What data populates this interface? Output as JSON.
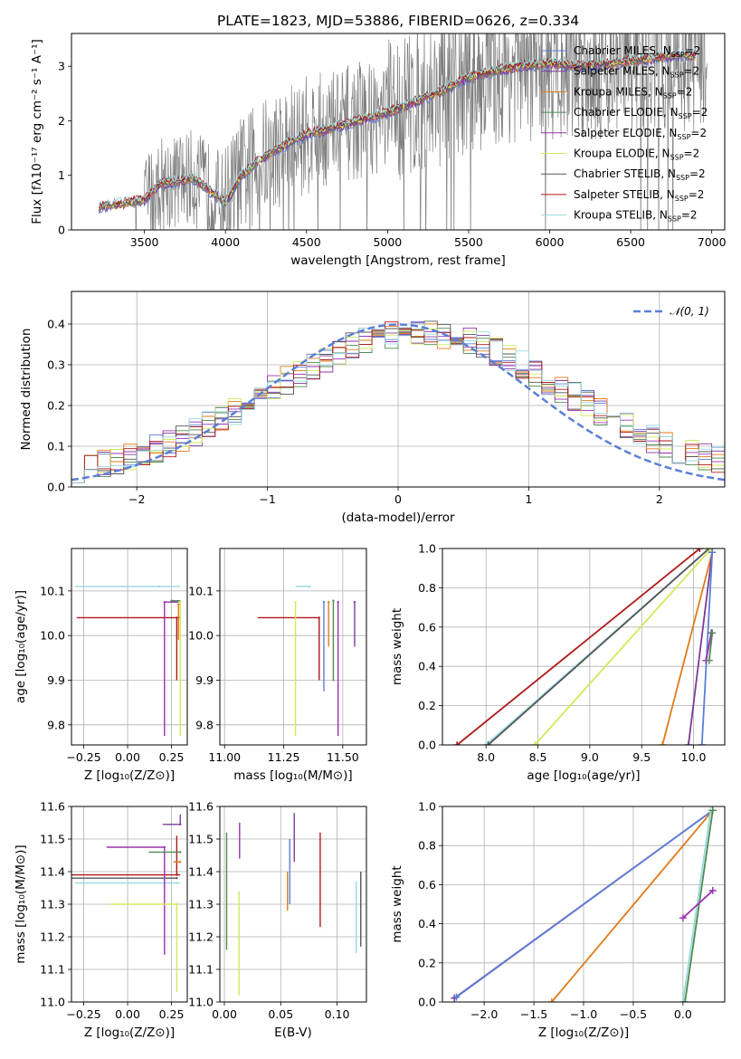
{
  "figure": {
    "title": "PLATE=1823, MJD=53886, FIBERID=0626, z=0.334"
  },
  "models": [
    {
      "label": "Chabrier MILES, N",
      "color": "#5b7fd6"
    },
    {
      "label": "Salpeter MILES, N",
      "color": "#7b3b9a"
    },
    {
      "label": "Kroupa MILES, N",
      "color": "#e07b1a"
    },
    {
      "label": "Chabrier ELODIE, N",
      "color": "#4f8a4f"
    },
    {
      "label": "Salpeter ELODIE, N",
      "color": "#9b30b0"
    },
    {
      "label": "Kroupa ELODIE, N",
      "color": "#d4e85a"
    },
    {
      "label": "Chabrier STELIB, N",
      "color": "#555555"
    },
    {
      "label": "Salpeter STELIB, N",
      "color": "#b01818"
    },
    {
      "label": "Kroupa STELIB, N",
      "color": "#98d8e0"
    }
  ],
  "legend_suffix": {
    "sub": "SSP",
    "tail": "=2"
  },
  "chart_data": [
    {
      "id": "spectrum",
      "type": "line",
      "xlabel": "wavelength [Angstrom, rest frame]",
      "ylabel": "Flux [fλ10⁻¹⁷ erg cm⁻² s⁻¹ A⁻¹]",
      "xlim": [
        3050,
        7080
      ],
      "ylim": [
        0,
        3.6
      ],
      "xticks": [
        3500,
        4000,
        4500,
        5000,
        5500,
        6000,
        6500,
        7000
      ],
      "yticks": [
        0,
        1,
        2,
        3
      ],
      "data_x_range": [
        3220,
        6970
      ],
      "model_continuum": {
        "x": [
          3220,
          3500,
          3600,
          3800,
          4000,
          4100,
          4200,
          4300,
          4400,
          4500,
          4700,
          5000,
          5300,
          5500,
          5800,
          6000,
          6200,
          6500,
          6800
        ],
        "y": [
          0.42,
          0.55,
          0.85,
          0.95,
          0.5,
          1.0,
          1.25,
          1.45,
          1.6,
          1.75,
          1.9,
          2.15,
          2.5,
          2.8,
          3.0,
          3.05,
          3.0,
          3.1,
          3.2
        ]
      }
    },
    {
      "id": "residuals",
      "type": "histogram",
      "xlabel": "(data-model)/error",
      "ylabel": "Normed distribution",
      "xlim": [
        -2.5,
        2.5
      ],
      "ylim": [
        0,
        0.48
      ],
      "xticks": [
        -2,
        -1,
        0,
        1,
        2
      ],
      "yticks": [
        0.0,
        0.1,
        0.2,
        0.3,
        0.4
      ],
      "grid": true,
      "reference": {
        "label": "N(0,1)",
        "type": "gaussian",
        "mu": 0,
        "sigma": 1
      },
      "bin_width": 0.1
    },
    {
      "id": "age_vs_Z",
      "type": "scatter",
      "xlabel": "Z [log₁₀(Z/Z⊙)]",
      "ylabel": "age  [log₁₀(age/yr)]",
      "xlim": [
        -0.32,
        0.34
      ],
      "ylim": [
        9.755,
        10.195
      ],
      "xticks": [
        -0.25,
        0.0,
        0.25
      ],
      "yticks": [
        9.8,
        9.9,
        10.0,
        10.1
      ],
      "grid": true,
      "points": [
        {
          "model": 8,
          "x": 0.18,
          "y": 10.11,
          "xerr": [
            0.48,
            0.12
          ],
          "yerr": [
            0.0,
            0.0
          ]
        },
        {
          "model": 7,
          "x": 0.28,
          "y": 10.04,
          "xerr": [
            0.57,
            0.02
          ],
          "yerr": [
            0.14,
            0.0
          ]
        },
        {
          "model": 4,
          "x": 0.21,
          "y": 10.075,
          "xerr": [
            0.0,
            0.08
          ],
          "yerr": [
            0.3,
            0.0
          ]
        },
        {
          "model": 5,
          "x": 0.3,
          "y": 10.075,
          "xerr": [
            0.0,
            0.0
          ],
          "yerr": [
            0.3,
            0.0
          ]
        },
        {
          "model": 2,
          "x": 0.29,
          "y": 10.07,
          "xerr": [
            0.0,
            0.0
          ],
          "yerr": [
            0.08,
            0.0
          ]
        },
        {
          "model": 3,
          "x": 0.25,
          "y": 10.078,
          "xerr": [
            0.0,
            0.05
          ],
          "yerr": [
            0.0,
            0.0
          ]
        }
      ]
    },
    {
      "id": "age_vs_mass",
      "type": "scatter",
      "xlabel": "mass [log₁₀(M/M⊙)]",
      "ylabel": "",
      "xlim": [
        10.98,
        11.6
      ],
      "ylim": [
        9.755,
        10.195
      ],
      "xticks": [
        11.0,
        11.25,
        11.5
      ],
      "yticks": [
        9.8,
        9.9,
        10.0,
        10.1
      ],
      "grid": true,
      "points": [
        {
          "model": 8,
          "x": 11.36,
          "y": 10.11,
          "xerr": [
            0.06,
            0.0
          ],
          "yerr": [
            0.0,
            0.0
          ]
        },
        {
          "model": 7,
          "x": 11.4,
          "y": 10.04,
          "xerr": [
            0.26,
            0.0
          ],
          "yerr": [
            0.14,
            0.0
          ]
        },
        {
          "model": 4,
          "x": 11.48,
          "y": 10.075,
          "xerr": [
            0.0,
            0.0
          ],
          "yerr": [
            0.3,
            0.0
          ]
        },
        {
          "model": 5,
          "x": 11.3,
          "y": 10.075,
          "xerr": [
            0.0,
            0.0
          ],
          "yerr": [
            0.3,
            0.0
          ]
        },
        {
          "model": 3,
          "x": 11.46,
          "y": 10.078,
          "xerr": [
            0.0,
            0.0
          ],
          "yerr": [
            0.18,
            0.0
          ]
        },
        {
          "model": 0,
          "x": 11.42,
          "y": 10.075,
          "xerr": [
            0.0,
            0.0
          ],
          "yerr": [
            0.2,
            0.0
          ]
        },
        {
          "model": 2,
          "x": 11.44,
          "y": 10.075,
          "xerr": [
            0.0,
            0.0
          ],
          "yerr": [
            0.1,
            0.0
          ]
        },
        {
          "model": 1,
          "x": 11.55,
          "y": 10.075,
          "xerr": [
            0.0,
            0.0
          ],
          "yerr": [
            0.1,
            0.0
          ]
        }
      ]
    },
    {
      "id": "mass_weight_vs_age",
      "type": "line",
      "xlabel": "age  [log₁₀(age/yr)]",
      "ylabel": "mass weight",
      "xlim": [
        7.58,
        10.3
      ],
      "ylim": [
        0.0,
        1.0
      ],
      "xticks": [
        8.0,
        8.5,
        9.0,
        9.5,
        10.0
      ],
      "yticks": [
        0.0,
        0.2,
        0.4,
        0.6,
        0.8,
        1.0
      ],
      "grid": true,
      "lines": [
        {
          "model": 7,
          "x": [
            7.72,
            10.06
          ],
          "y": [
            0.0,
            1.0
          ]
        },
        {
          "model": 8,
          "x": [
            8.0,
            10.15
          ],
          "y": [
            0.0,
            1.0
          ]
        },
        {
          "model": 6,
          "x": [
            8.02,
            10.15
          ],
          "y": [
            0.0,
            1.0
          ]
        },
        {
          "model": 5,
          "x": [
            8.47,
            10.17
          ],
          "y": [
            0.0,
            1.0
          ]
        },
        {
          "model": 2,
          "x": [
            9.7,
            10.18
          ],
          "y": [
            0.0,
            0.98
          ]
        },
        {
          "model": 1,
          "x": [
            9.95,
            10.18
          ],
          "y": [
            0.0,
            0.98
          ]
        },
        {
          "model": 0,
          "x": [
            10.08,
            10.18
          ],
          "y": [
            0.0,
            0.98
          ]
        },
        {
          "model": 4,
          "x": [
            10.12,
            10.17
          ],
          "y": [
            0.43,
            0.57
          ]
        },
        {
          "model": 3,
          "x": [
            10.15,
            10.18
          ],
          "y": [
            0.43,
            0.57
          ]
        }
      ]
    },
    {
      "id": "mass_vs_Z",
      "type": "scatter",
      "xlabel": "Z [log₁₀(Z/Z⊙)]",
      "ylabel": "mass [log₁₀(M/M⊙)]",
      "xlim": [
        -0.32,
        0.34
      ],
      "ylim": [
        11.0,
        11.6
      ],
      "xticks": [
        -0.25,
        0.0,
        0.25
      ],
      "yticks": [
        11.0,
        11.1,
        11.2,
        11.3,
        11.4,
        11.5,
        11.6
      ],
      "grid": true,
      "points": [
        {
          "model": 7,
          "x": 0.28,
          "y": 11.39,
          "xerr": [
            0.6,
            0.02
          ],
          "yerr": [
            0.0,
            0.12
          ]
        },
        {
          "model": 8,
          "x": 0.28,
          "y": 11.365,
          "xerr": [
            0.58,
            0.02
          ],
          "yerr": [
            0.0,
            0.0
          ]
        },
        {
          "model": 6,
          "x": 0.28,
          "y": 11.38,
          "xerr": [
            0.6,
            0.0
          ],
          "yerr": [
            0.0,
            0.0
          ]
        },
        {
          "model": 4,
          "x": 0.21,
          "y": 11.475,
          "xerr": [
            0.33,
            0.0
          ],
          "yerr": [
            0.33,
            0.0
          ]
        },
        {
          "model": 5,
          "x": 0.28,
          "y": 11.3,
          "xerr": [
            0.38,
            0.0
          ],
          "yerr": [
            0.27,
            0.0
          ]
        },
        {
          "model": 1,
          "x": 0.3,
          "y": 11.545,
          "xerr": [
            0.1,
            0.0
          ],
          "yerr": [
            0.0,
            0.03
          ]
        },
        {
          "model": 2,
          "x": 0.3,
          "y": 11.43,
          "xerr": [
            0.04,
            0.0
          ],
          "yerr": [
            0.0,
            0.0
          ]
        },
        {
          "model": 3,
          "x": 0.3,
          "y": 11.46,
          "xerr": [
            0.18,
            0.0
          ],
          "yerr": [
            0.0,
            0.0
          ]
        }
      ]
    },
    {
      "id": "mass_vs_ebv",
      "type": "scatter",
      "xlabel": "E(B-V)",
      "ylabel": "",
      "xlim": [
        -0.004,
        0.126
      ],
      "ylim": [
        11.0,
        11.6
      ],
      "xticks": [
        0.0,
        0.05,
        0.1
      ],
      "yticks": [
        11.0,
        11.1,
        11.2,
        11.3,
        11.4,
        11.5,
        11.6
      ],
      "grid": true,
      "segments": [
        {
          "model": 3,
          "x": 0.002,
          "y": [
            11.16,
            11.52
          ]
        },
        {
          "model": 5,
          "x": 0.013,
          "y": [
            11.02,
            11.34
          ]
        },
        {
          "model": 4,
          "x": 0.0135,
          "y": [
            11.44,
            11.55
          ]
        },
        {
          "model": 0,
          "x": 0.058,
          "y": [
            11.3,
            11.5
          ]
        },
        {
          "model": 2,
          "x": 0.056,
          "y": [
            11.28,
            11.4
          ]
        },
        {
          "model": 1,
          "x": 0.062,
          "y": [
            11.43,
            11.58
          ]
        },
        {
          "model": 7,
          "x": 0.085,
          "y": [
            11.23,
            11.52
          ]
        },
        {
          "model": 8,
          "x": 0.117,
          "y": [
            11.15,
            11.37
          ]
        },
        {
          "model": 6,
          "x": 0.121,
          "y": [
            11.17,
            11.4
          ]
        }
      ]
    },
    {
      "id": "mass_weight_vs_Z",
      "type": "line",
      "xlabel": "Z [log₁₀(Z/Z⊙)]",
      "ylabel": "mass weight",
      "xlim": [
        -2.42,
        0.42
      ],
      "ylim": [
        0.0,
        1.0
      ],
      "xticks": [
        -2.0,
        -1.5,
        -1.0,
        -0.5,
        0.0
      ],
      "yticks": [
        0.0,
        0.2,
        0.4,
        0.6,
        0.8,
        1.0
      ],
      "grid": true,
      "lines": [
        {
          "model": 1,
          "x": [
            -2.3,
            0.3
          ],
          "y": [
            0.02,
            0.98
          ]
        },
        {
          "model": 0,
          "x": [
            -2.28,
            0.3
          ],
          "y": [
            0.025,
            0.98
          ]
        },
        {
          "model": 2,
          "x": [
            -1.32,
            0.3
          ],
          "y": [
            0.0,
            0.98
          ]
        },
        {
          "model": 8,
          "x": [
            0.0,
            0.28
          ],
          "y": [
            0.0,
            0.98
          ]
        },
        {
          "model": 3,
          "x": [
            0.02,
            0.3
          ],
          "y": [
            0.0,
            0.98
          ]
        },
        {
          "model": 4,
          "x": [
            0.0,
            0.3
          ],
          "y": [
            0.43,
            0.57
          ]
        }
      ]
    }
  ]
}
